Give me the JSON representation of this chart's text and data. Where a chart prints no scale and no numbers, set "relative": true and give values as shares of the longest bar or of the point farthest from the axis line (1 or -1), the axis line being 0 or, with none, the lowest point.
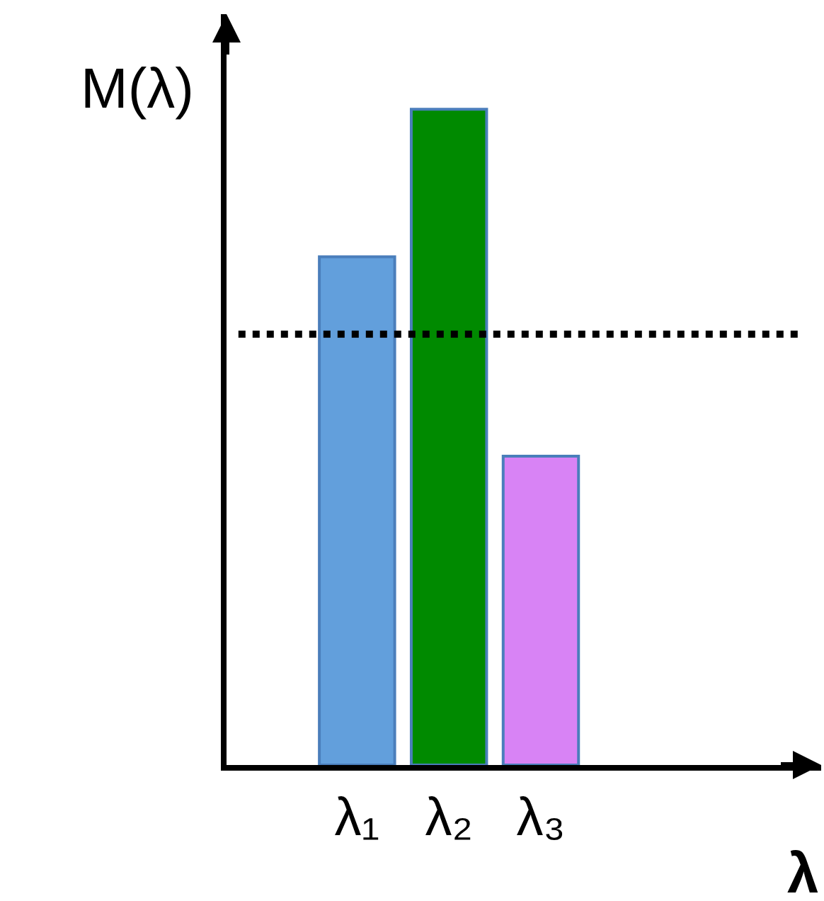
{
  "chart_data": {
    "type": "bar",
    "relative": true,
    "xlabel": "λ",
    "ylabel": "M(λ)",
    "categories": [
      "λ₁",
      "λ₂",
      "λ₃"
    ],
    "values": [
      0.775,
      1,
      0.471
    ],
    "colors": [
      "#629fdc",
      "#008a00",
      "#d883f5"
    ],
    "ref_lines": [
      {
        "axis": "y",
        "value": 0.657,
        "color": "#000000",
        "line_style": "dotted"
      }
    ]
  }
}
